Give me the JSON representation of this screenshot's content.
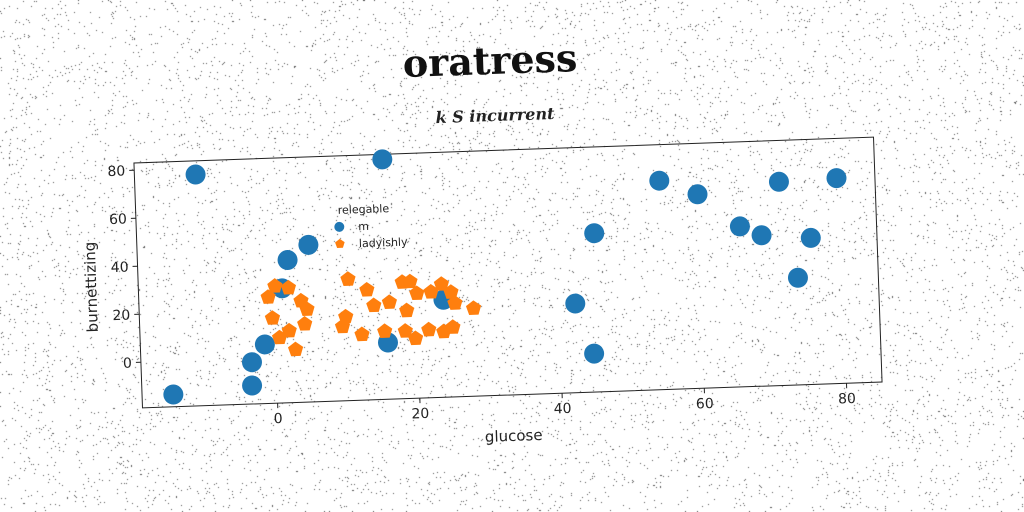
{
  "chart_data": {
    "type": "scatter",
    "title": "oratress",
    "subtitle": "k S incurrent",
    "xlabel": "glucose",
    "ylabel": "burnettizing",
    "xlim": [
      -19,
      85
    ],
    "ylim": [
      -19,
      83
    ],
    "xticks": [
      0,
      20,
      40,
      60,
      80
    ],
    "yticks": [
      0,
      20,
      40,
      60,
      80
    ],
    "legend": {
      "title": "relegable",
      "position": "lower-center"
    },
    "series": [
      {
        "name": "m",
        "color": "#1f77b4",
        "marker": "circle",
        "points": [
          [
            -14.6,
            -13.9
          ],
          [
            -10.4,
            77.3
          ],
          [
            -3.5,
            -11.3
          ],
          [
            -3.4,
            -1.6
          ],
          [
            -1.5,
            5.6
          ],
          [
            1.2,
            28.7
          ],
          [
            2.1,
            40.4
          ],
          [
            5.1,
            46.4
          ],
          [
            15.9,
            80.9
          ],
          [
            15.8,
            4.6
          ],
          [
            23.8,
            21.6
          ],
          [
            42.3,
            18.1
          ],
          [
            45.3,
            47.1
          ],
          [
            44.7,
            -3.0
          ],
          [
            54.7,
            68.0
          ],
          [
            60.0,
            61.8
          ],
          [
            65.8,
            47.8
          ],
          [
            68.8,
            43.8
          ],
          [
            71.5,
            65.8
          ],
          [
            73.7,
            25.6
          ],
          [
            75.7,
            42.0
          ],
          [
            79.6,
            66.5
          ]
        ]
      },
      {
        "name": "ladyishly",
        "color": "#ff7f0e",
        "marker": "pentagon",
        "points": [
          [
            -0.8,
            25.2
          ],
          [
            0.2,
            29.7
          ],
          [
            2.1,
            28.8
          ],
          [
            3.8,
            23.2
          ],
          [
            4.6,
            19.6
          ],
          [
            4.2,
            13.5
          ],
          [
            2.8,
            3.0
          ],
          [
            0.6,
            8.2
          ],
          [
            2.0,
            10.9
          ],
          [
            -0.3,
            16.4
          ],
          [
            10.5,
            31.5
          ],
          [
            13.1,
            26.8
          ],
          [
            10.0,
            15.9
          ],
          [
            9.5,
            11.9
          ],
          [
            12.2,
            8.3
          ],
          [
            14.0,
            20.2
          ],
          [
            16.2,
            21.3
          ],
          [
            15.4,
            9.3
          ],
          [
            18.1,
            29.5
          ],
          [
            19.2,
            29.6
          ],
          [
            18.6,
            17.6
          ],
          [
            20.1,
            24.6
          ],
          [
            22.1,
            25.0
          ],
          [
            23.6,
            28.1
          ],
          [
            24.9,
            24.6
          ],
          [
            25.4,
            20.0
          ],
          [
            18.3,
            9.1
          ],
          [
            19.7,
            5.9
          ],
          [
            21.6,
            9.3
          ],
          [
            23.7,
            8.3
          ],
          [
            25.0,
            10.0
          ],
          [
            28.0,
            17.6
          ]
        ]
      }
    ]
  }
}
